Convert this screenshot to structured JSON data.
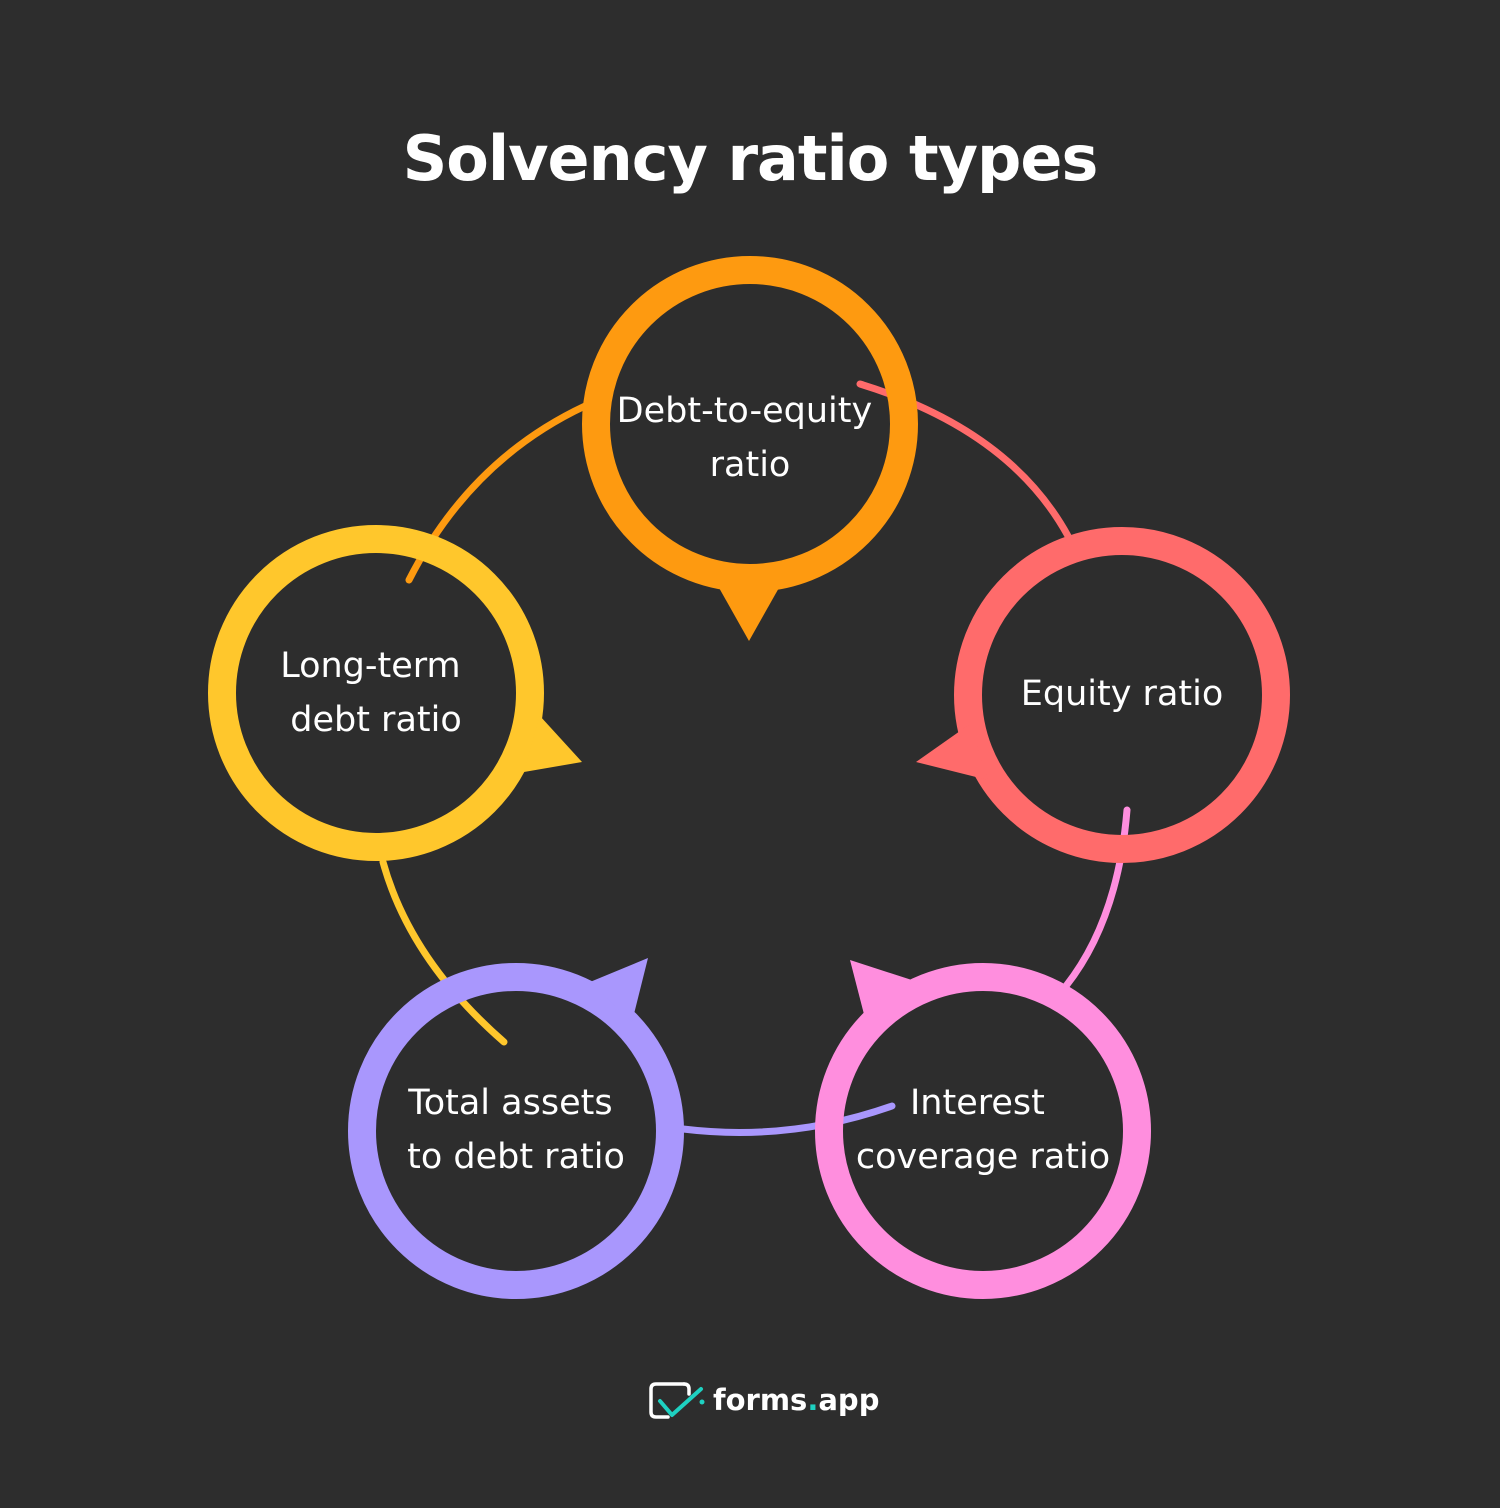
{
  "title": "Solvency ratio types",
  "nodes": [
    {
      "id": "debt-to-equity",
      "lines": [
        "Debt-to-equity",
        "ratio"
      ],
      "color": "#fe9a10"
    },
    {
      "id": "equity",
      "lines": [
        "Equity ratio"
      ],
      "color": "#ff6b6b"
    },
    {
      "id": "interest-coverage",
      "lines": [
        "Interest",
        "coverage ratio"
      ],
      "color": "#ff8ede"
    },
    {
      "id": "total-assets-to-debt",
      "lines": [
        "Total assets",
        "to debt ratio"
      ],
      "color": "#a997fd"
    },
    {
      "id": "long-term-debt",
      "lines": [
        "Long-term",
        "debt ratio"
      ],
      "color": "#ffc72c"
    }
  ],
  "brand": {
    "name_main": "forms",
    "name_dot": ".",
    "name_tld": "app",
    "accent": "#1ed1c1"
  },
  "colors": {
    "background": "#2d2d2d"
  }
}
